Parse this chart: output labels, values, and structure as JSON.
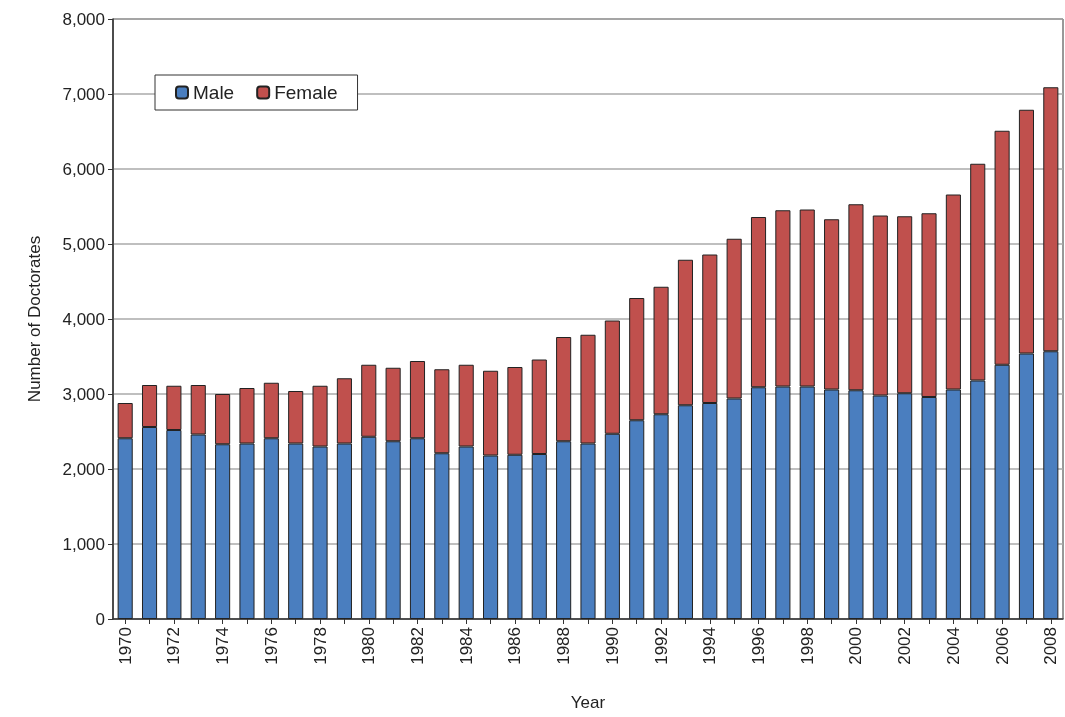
{
  "chart_data": {
    "type": "bar",
    "stacked": true,
    "xlabel": "Year",
    "ylabel": "Number of Doctorates",
    "categories": [
      "1970",
      null,
      "1972",
      null,
      "1974",
      null,
      "1976",
      null,
      "1978",
      null,
      "1980",
      null,
      "1982",
      null,
      "1984",
      null,
      "1986",
      null,
      "1988",
      null,
      "1990",
      null,
      "1992",
      null,
      "1994",
      null,
      "1996",
      null,
      "1998",
      null,
      "2000",
      null,
      "2002",
      null,
      "2004",
      null,
      "2006",
      null,
      "2008"
    ],
    "series": [
      {
        "name": "Male",
        "color": "#4a7ebf",
        "values": [
          2410,
          2560,
          2520,
          2460,
          2330,
          2340,
          2410,
          2340,
          2300,
          2340,
          2430,
          2370,
          2410,
          2210,
          2300,
          2180,
          2190,
          2200,
          2370,
          2340,
          2470,
          2650,
          2730,
          2850,
          2880,
          2940,
          3090,
          3100,
          3100,
          3060,
          3050,
          2980,
          3010,
          2960,
          3060,
          3180,
          3390,
          3540,
          3570
        ]
      },
      {
        "name": "Female",
        "color": "#c0504d",
        "values": [
          470,
          560,
          590,
          660,
          670,
          740,
          740,
          700,
          810,
          870,
          960,
          980,
          1030,
          1120,
          1090,
          1130,
          1170,
          1260,
          1390,
          1450,
          1510,
          1630,
          1700,
          1940,
          1980,
          2130,
          2270,
          2350,
          2360,
          2270,
          2480,
          2400,
          2360,
          2450,
          2600,
          2890,
          3120,
          3250,
          3520
        ]
      }
    ],
    "ylim": [
      0,
      8000
    ],
    "yticks": [
      {
        "value": 0,
        "label": "0"
      },
      {
        "value": 1000,
        "label": "1,000"
      },
      {
        "value": 2000,
        "label": "2,000"
      },
      {
        "value": 3000,
        "label": "3,000"
      },
      {
        "value": 4000,
        "label": "4,000"
      },
      {
        "value": 5000,
        "label": "5,000"
      },
      {
        "value": 6000,
        "label": "6,000"
      },
      {
        "value": 7000,
        "label": "7,000"
      },
      {
        "value": 8000,
        "label": "8,000"
      }
    ],
    "grid": "y",
    "legend": "top left"
  }
}
